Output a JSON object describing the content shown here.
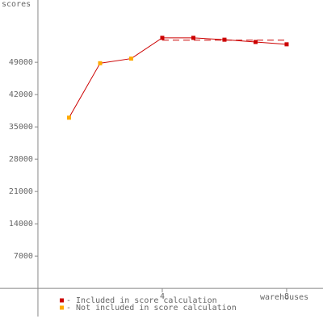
{
  "chart_data": {
    "type": "line",
    "y_label": "scores",
    "x_label": "warehouses",
    "line_color": "#cc0000",
    "series": [
      {
        "name": "- Included in score calculation",
        "color": "#cc0000",
        "x": [
          4,
          5,
          6,
          7,
          8
        ],
        "values": [
          54300,
          54300,
          53900,
          53400,
          52900
        ]
      },
      {
        "name": "- Not included in score calculation",
        "color": "#ffaa00",
        "x": [
          1,
          2,
          3
        ],
        "values": [
          37000,
          48800,
          49800
        ]
      }
    ],
    "score_line": {
      "x": [
        4,
        8
      ],
      "value": 53800,
      "color": "#cc0000"
    },
    "xlim": [
      -1.22,
      9.17
    ],
    "ylim": [
      -7500,
      62500
    ],
    "xticks": [
      4,
      8
    ],
    "yticks": [
      7000,
      14000,
      21000,
      28000,
      35000,
      42000,
      49000
    ]
  }
}
